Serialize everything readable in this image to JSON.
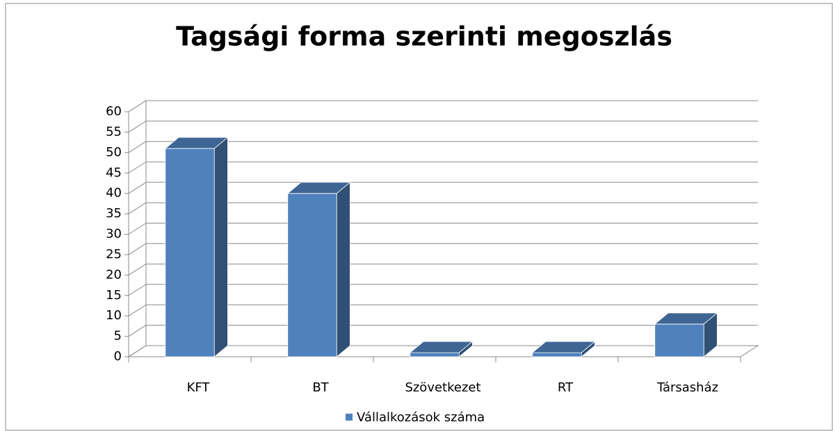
{
  "chart_data": {
    "type": "bar3d",
    "title": "Tagsági forma szerinti megoszlás",
    "categories": [
      "KFT",
      "BT",
      "Szövetkezet",
      "RT",
      "Társasház"
    ],
    "series": [
      {
        "name": "Vállalkozások száma",
        "color": "#4f81bd",
        "values": [
          51,
          40,
          1,
          1,
          8
        ]
      }
    ],
    "ylim": [
      0,
      60
    ],
    "yticks": [
      0,
      5,
      10,
      15,
      20,
      25,
      30,
      35,
      40,
      45,
      50,
      55,
      60
    ],
    "grid": true,
    "legend": "bottom"
  }
}
